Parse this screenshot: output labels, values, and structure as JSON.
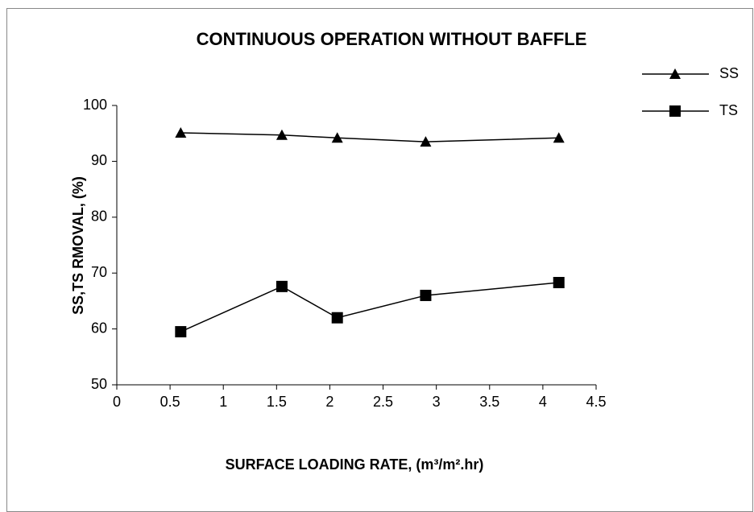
{
  "chart_data": {
    "type": "line",
    "title": "CONTINUOUS OPERATION WITHOUT  BAFFLE",
    "x_label": "SURFACE LOADING RATE, (m³/m².hr)",
    "y_label": "SS,TS RMOVAL, (%)",
    "x": [
      0.6,
      1.55,
      2.07,
      2.9,
      4.15
    ],
    "series": [
      {
        "name": "SS",
        "color": "#000000",
        "marker": "triangle",
        "values": [
          95.1,
          94.7,
          94.2,
          93.5,
          94.2
        ]
      },
      {
        "name": "TS",
        "color": "#000000",
        "marker": "square",
        "values": [
          59.5,
          67.6,
          62.0,
          66.0,
          68.3
        ]
      }
    ],
    "xlim": [
      0,
      4.5
    ],
    "xticks": [
      0,
      0.5,
      1,
      1.5,
      2,
      2.5,
      3,
      3.5,
      4,
      4.5
    ],
    "ylim": [
      50,
      100
    ],
    "yticks": [
      50,
      60,
      70,
      80,
      90,
      100
    ],
    "legend": "upper right",
    "grid": false
  }
}
